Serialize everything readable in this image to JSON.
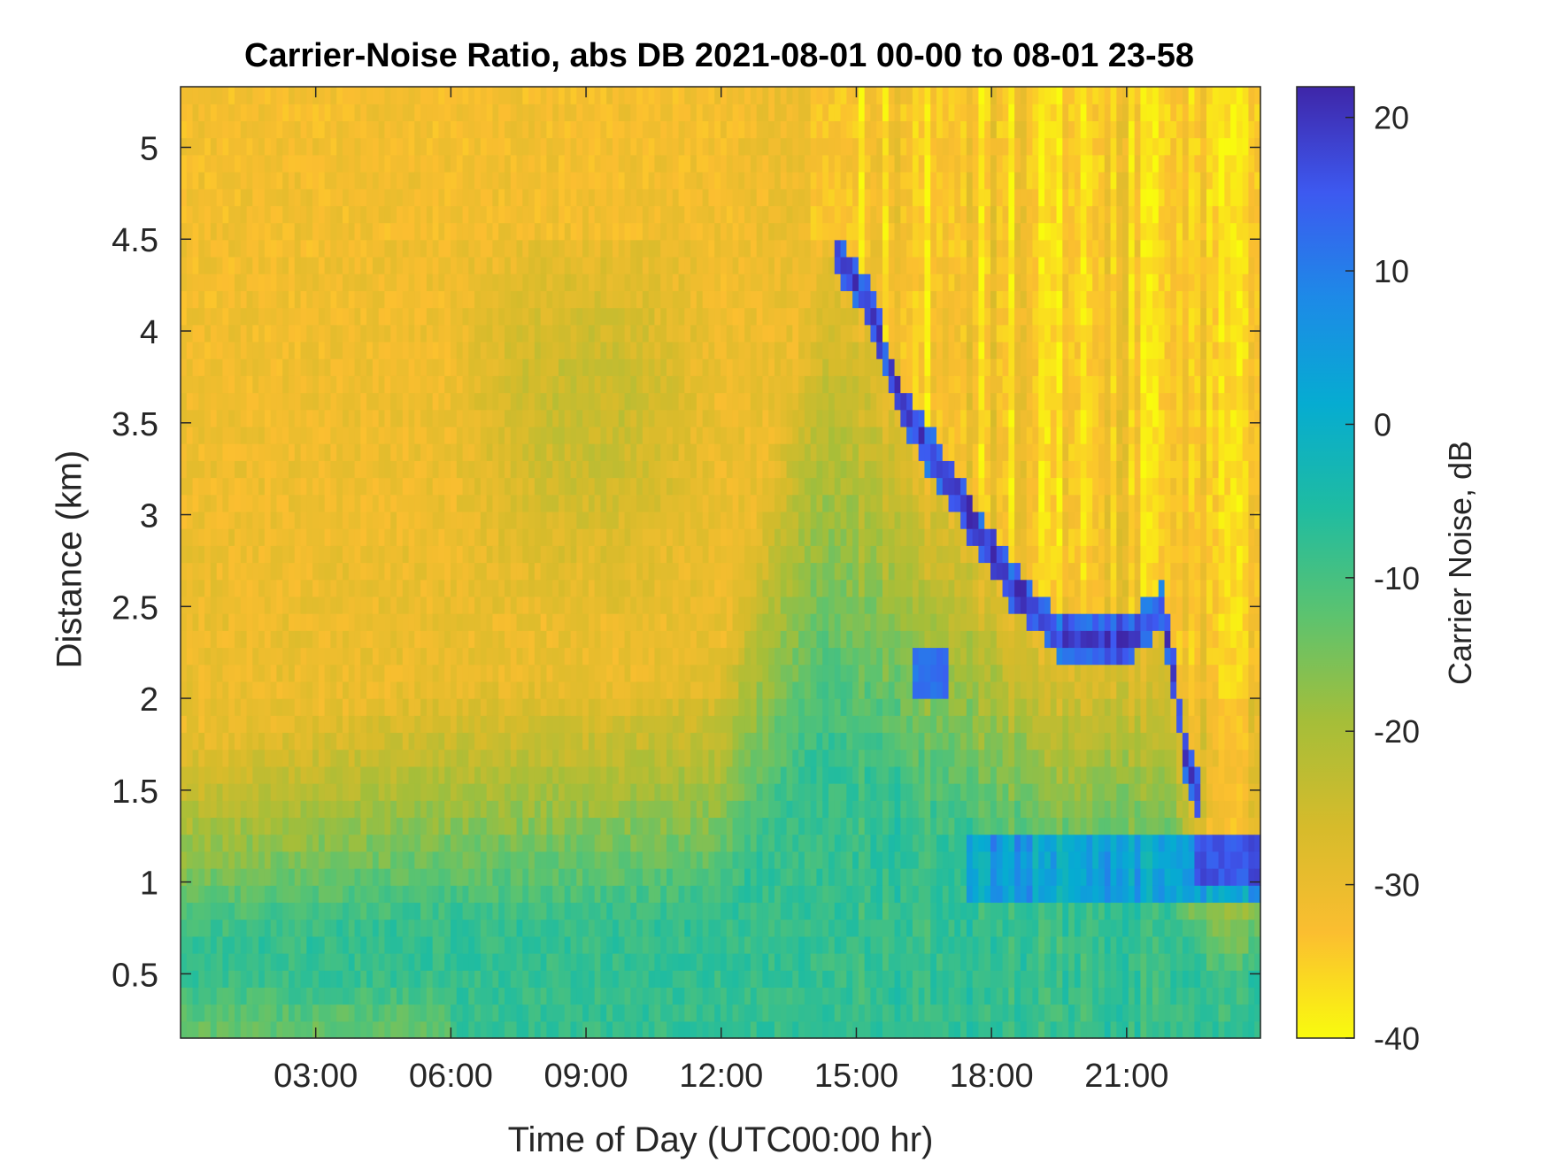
{
  "chart_data": {
    "type": "heatmap",
    "title": "Carrier-Noise Ratio, abs DB 2021-08-01 00-00 to 08-01 23-58",
    "xlabel": "Time of Day (UTC00:00 hr)",
    "ylabel": "Distance (km)",
    "colorbar_label": "Carrier Noise, dB",
    "x_unit": "hours (UTC)",
    "xlim": [
      0,
      23.97
    ],
    "ylim": [
      0.15,
      5.33
    ],
    "clim": [
      -40,
      22
    ],
    "x_ticks": [
      3,
      6,
      9,
      12,
      15,
      18,
      21
    ],
    "x_tick_labels": [
      "03:00",
      "06:00",
      "09:00",
      "12:00",
      "15:00",
      "18:00",
      "21:00"
    ],
    "y_ticks": [
      0.5,
      1,
      1.5,
      2,
      2.5,
      3,
      3.5,
      4,
      4.5,
      5
    ],
    "y_tick_labels": [
      "0.5",
      "1",
      "1.5",
      "2",
      "2.5",
      "3",
      "3.5",
      "4",
      "4.5",
      "5"
    ],
    "colorbar_ticks": [
      -40,
      -30,
      -20,
      -10,
      0,
      10,
      20
    ],
    "colorbar_tick_labels": [
      "-40",
      "-30",
      "-20",
      "-10",
      "0",
      "10",
      "20"
    ],
    "colormap": "parula (reversed: yellow = low, dark blue = high)",
    "colormap_stops": [
      "#f9fb0e",
      "#fbbe30",
      "#d6bb2b",
      "#a5be39",
      "#5cc36f",
      "#1fbca1",
      "#06acd1",
      "#1d8ae7",
      "#3d59f0",
      "#3e26a8"
    ],
    "description_points": {
      "boundary_layer_top_km": [
        {
          "t": 0,
          "km": 1.8
        },
        {
          "t": 6,
          "km": 2.1
        },
        {
          "t": 9,
          "km": 2.1
        },
        {
          "t": 12,
          "km": 2.2
        },
        {
          "t": 14.3,
          "km": 4.5
        },
        {
          "t": 15.2,
          "km": 4.2
        },
        {
          "t": 16.0,
          "km": 3.6
        },
        {
          "t": 17.5,
          "km": 3.0
        },
        {
          "t": 18.5,
          "km": 2.6
        },
        {
          "t": 19.5,
          "km": 2.35
        },
        {
          "t": 21.0,
          "km": 2.3
        },
        {
          "t": 21.8,
          "km": 2.5
        },
        {
          "t": 22.3,
          "km": 1.7
        },
        {
          "t": 22.8,
          "km": 1.3
        },
        {
          "t": 23.97,
          "km": 1.3
        }
      ],
      "low_level_core_db": -8,
      "aloft_db": -30,
      "peak_db": 18
    }
  }
}
